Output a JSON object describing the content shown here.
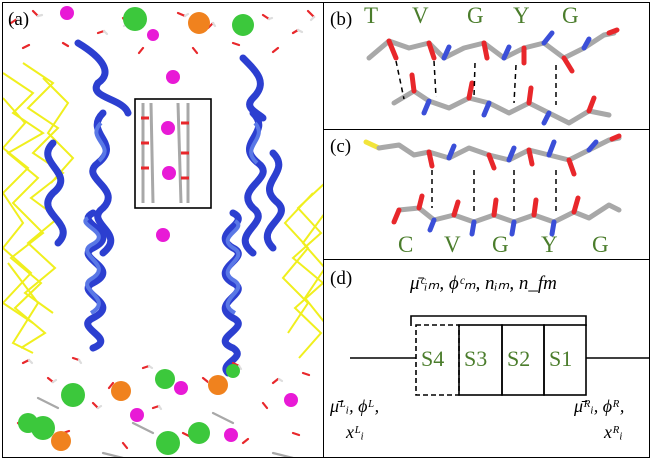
{
  "panel_a": {
    "label": "(a)"
  },
  "panel_b": {
    "label": "(b)",
    "residues": [
      "T",
      "V",
      "G",
      "Y",
      "G"
    ]
  },
  "panel_c": {
    "label": "(c)",
    "residues": [
      "C",
      "V",
      "G",
      "Y",
      "G"
    ]
  },
  "panel_d": {
    "label": "(d)",
    "sites": [
      "S4",
      "S3",
      "S2",
      "S1"
    ],
    "top_vars": "μ̄ᶜᵢₘ, ϕᶜₘ, nᵢₘ, n_fm",
    "left_vars_line1": "μ̄ᴸᵢ, ϕᴸ,",
    "left_vars_line2": "xᴸᵢ",
    "right_vars_line1": "μ̄ᴿᵢ, ϕᴿ,",
    "right_vars_line2": "xᴿᵢ"
  },
  "colors": {
    "helix": "#2c3fd0",
    "lipid": "#f0ef1e",
    "ion": "#e81ad6",
    "residue_text": "#4b7d2c",
    "carbon": "#a8a8a8",
    "oxygen": "#e8272b",
    "nitrogen": "#3b4fd8",
    "sulfur": "#f2e43a"
  }
}
